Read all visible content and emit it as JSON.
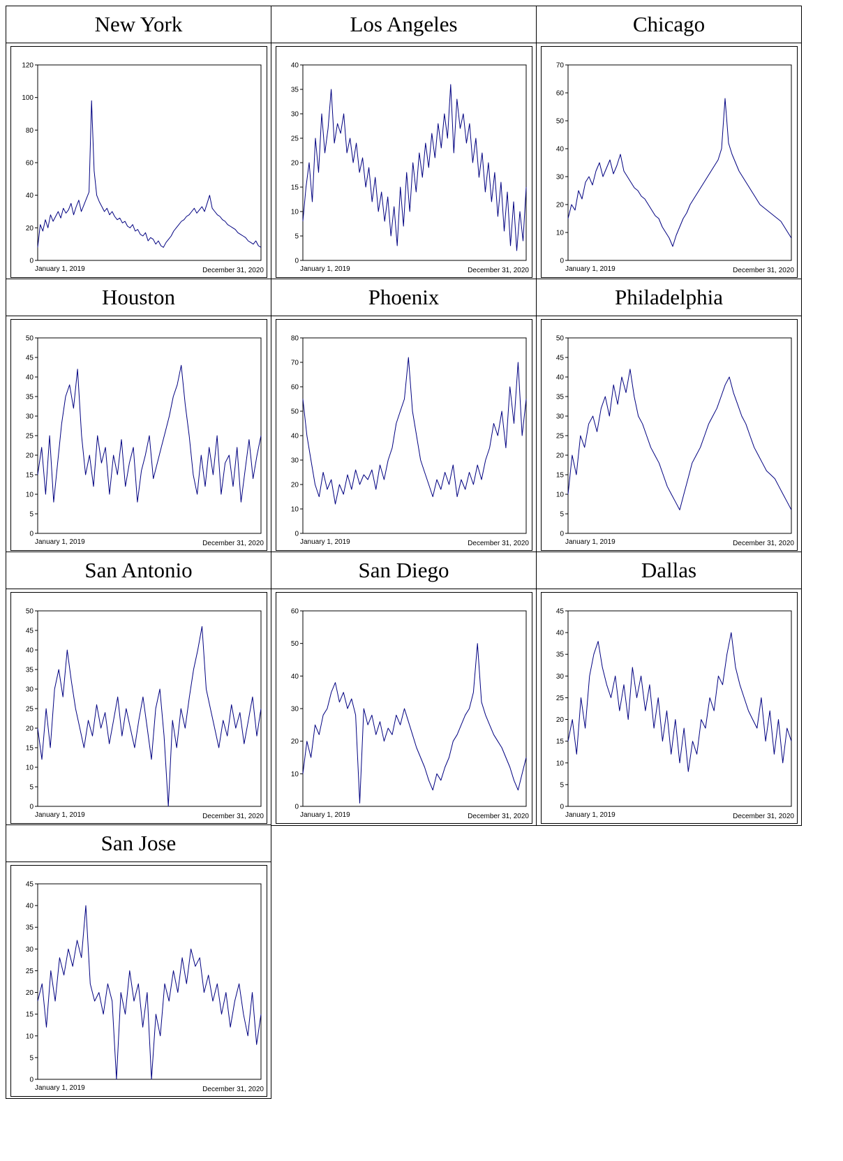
{
  "chart_data": [
    {
      "title": "New York",
      "type": "line",
      "ylim": [
        0,
        120
      ],
      "yticks": [
        0,
        20,
        40,
        60,
        80,
        100,
        120
      ],
      "x_start_label": "January 1, 2019",
      "x_end_label": "December 31, 2020",
      "color": "#000080",
      "values": [
        8,
        22,
        18,
        25,
        20,
        28,
        24,
        27,
        30,
        26,
        32,
        29,
        31,
        35,
        28,
        33,
        37,
        30,
        34,
        38,
        42,
        98,
        55,
        40,
        36,
        33,
        30,
        32,
        28,
        30,
        27,
        25,
        26,
        23,
        24,
        21,
        20,
        22,
        18,
        19,
        16,
        15,
        17,
        12,
        14,
        13,
        10,
        12,
        9,
        8,
        11,
        13,
        15,
        18,
        20,
        22,
        24,
        25,
        27,
        28,
        30,
        32,
        29,
        31,
        33,
        30,
        35,
        40,
        32,
        30,
        28,
        27,
        25,
        24,
        22,
        21,
        20,
        19,
        17,
        16,
        15,
        14,
        12,
        11,
        10,
        12,
        9,
        8
      ]
    },
    {
      "title": "Los Angeles",
      "type": "line",
      "ylim": [
        0,
        40
      ],
      "yticks": [
        0,
        5,
        10,
        15,
        20,
        25,
        30,
        35,
        40
      ],
      "x_start_label": "January 1, 2019",
      "x_end_label": "December 31, 2020",
      "color": "#000080",
      "values": [
        8,
        15,
        20,
        12,
        25,
        18,
        30,
        22,
        27,
        35,
        24,
        28,
        26,
        30,
        22,
        25,
        20,
        24,
        18,
        21,
        15,
        19,
        12,
        17,
        10,
        14,
        8,
        13,
        5,
        11,
        3,
        15,
        7,
        18,
        10,
        20,
        14,
        22,
        17,
        24,
        19,
        26,
        21,
        28,
        23,
        30,
        25,
        36,
        22,
        33,
        27,
        30,
        24,
        28,
        20,
        25,
        17,
        22,
        14,
        20,
        12,
        18,
        9,
        16,
        6,
        14,
        3,
        12,
        2,
        10,
        4,
        15
      ]
    },
    {
      "title": "Chicago",
      "type": "line",
      "ylim": [
        0,
        70
      ],
      "yticks": [
        0,
        10,
        20,
        30,
        40,
        50,
        60,
        70
      ],
      "x_start_label": "January 1, 2019",
      "x_end_label": "December 31, 2020",
      "color": "#000080",
      "values": [
        15,
        20,
        18,
        25,
        22,
        28,
        30,
        27,
        32,
        35,
        30,
        33,
        36,
        31,
        34,
        38,
        32,
        30,
        28,
        26,
        25,
        23,
        22,
        20,
        18,
        16,
        15,
        12,
        10,
        8,
        5,
        9,
        12,
        15,
        17,
        20,
        22,
        24,
        26,
        28,
        30,
        32,
        34,
        36,
        40,
        58,
        42,
        38,
        35,
        32,
        30,
        28,
        26,
        24,
        22,
        20,
        19,
        18,
        17,
        16,
        15,
        14,
        12,
        10,
        8
      ]
    },
    {
      "title": "Houston",
      "type": "line",
      "ylim": [
        0,
        50
      ],
      "yticks": [
        0,
        5,
        10,
        15,
        20,
        25,
        30,
        35,
        40,
        45,
        50
      ],
      "x_start_label": "January 1, 2019",
      "x_end_label": "December 31, 2020",
      "color": "#000080",
      "values": [
        15,
        22,
        10,
        25,
        8,
        18,
        28,
        35,
        38,
        32,
        42,
        25,
        15,
        20,
        12,
        25,
        18,
        22,
        10,
        20,
        15,
        24,
        12,
        18,
        22,
        8,
        16,
        20,
        25,
        14,
        18,
        22,
        26,
        30,
        35,
        38,
        43,
        33,
        25,
        15,
        10,
        20,
        12,
        22,
        15,
        25,
        10,
        18,
        20,
        12,
        22,
        8,
        16,
        24,
        14,
        20,
        25
      ]
    },
    {
      "title": "Phoenix",
      "type": "line",
      "ylim": [
        0,
        80
      ],
      "yticks": [
        0,
        10,
        20,
        30,
        40,
        50,
        60,
        70,
        80
      ],
      "x_start_label": "January 1, 2019",
      "x_end_label": "December 31, 2020",
      "color": "#000080",
      "values": [
        55,
        40,
        30,
        20,
        15,
        25,
        18,
        22,
        12,
        20,
        16,
        24,
        18,
        26,
        20,
        24,
        22,
        26,
        18,
        28,
        22,
        30,
        35,
        45,
        50,
        55,
        72,
        50,
        40,
        30,
        25,
        20,
        15,
        22,
        18,
        25,
        20,
        28,
        15,
        22,
        18,
        25,
        20,
        28,
        22,
        30,
        35,
        45,
        40,
        50,
        35,
        60,
        45,
        70,
        40,
        55
      ]
    },
    {
      "title": "Philadelphia",
      "type": "line",
      "ylim": [
        0,
        50
      ],
      "yticks": [
        0,
        5,
        10,
        15,
        20,
        25,
        30,
        35,
        40,
        45,
        50
      ],
      "x_start_label": "January 1, 2019",
      "x_end_label": "December 31, 2020",
      "color": "#000080",
      "values": [
        10,
        20,
        15,
        25,
        22,
        28,
        30,
        26,
        32,
        35,
        30,
        38,
        33,
        40,
        36,
        42,
        35,
        30,
        28,
        25,
        22,
        20,
        18,
        15,
        12,
        10,
        8,
        6,
        10,
        14,
        18,
        20,
        22,
        25,
        28,
        30,
        32,
        35,
        38,
        40,
        36,
        33,
        30,
        28,
        25,
        22,
        20,
        18,
        16,
        15,
        14,
        12,
        10,
        8,
        6
      ]
    },
    {
      "title": "San Antonio",
      "type": "line",
      "ylim": [
        0,
        50
      ],
      "yticks": [
        0,
        5,
        10,
        15,
        20,
        25,
        30,
        35,
        40,
        45,
        50
      ],
      "x_start_label": "January 1, 2019",
      "x_end_label": "December 31, 2020",
      "color": "#000080",
      "values": [
        20,
        12,
        25,
        15,
        30,
        35,
        28,
        40,
        32,
        25,
        20,
        15,
        22,
        18,
        26,
        20,
        24,
        16,
        22,
        28,
        18,
        25,
        20,
        15,
        22,
        28,
        20,
        12,
        25,
        30,
        18,
        0,
        22,
        15,
        25,
        20,
        28,
        35,
        40,
        46,
        30,
        25,
        20,
        15,
        22,
        18,
        26,
        20,
        24,
        16,
        22,
        28,
        18,
        25
      ]
    },
    {
      "title": "San Diego",
      "type": "line",
      "ylim": [
        0,
        60
      ],
      "yticks": [
        0,
        10,
        20,
        30,
        40,
        50,
        60
      ],
      "x_start_label": "January 1, 2019",
      "x_end_label": "December 31, 2020",
      "color": "#000080",
      "values": [
        10,
        20,
        15,
        25,
        22,
        28,
        30,
        35,
        38,
        32,
        35,
        30,
        33,
        28,
        1,
        30,
        25,
        28,
        22,
        26,
        20,
        24,
        22,
        28,
        25,
        30,
        26,
        22,
        18,
        15,
        12,
        8,
        5,
        10,
        8,
        12,
        15,
        20,
        22,
        25,
        28,
        30,
        35,
        50,
        32,
        28,
        25,
        22,
        20,
        18,
        15,
        12,
        8,
        5,
        10,
        15
      ]
    },
    {
      "title": "Dallas",
      "type": "line",
      "ylim": [
        0,
        45
      ],
      "yticks": [
        0,
        5,
        10,
        15,
        20,
        25,
        30,
        35,
        40,
        45
      ],
      "x_start_label": "January 1,  2019",
      "x_end_label": "December 31, 2020",
      "color": "#000080",
      "values": [
        15,
        20,
        12,
        25,
        18,
        30,
        35,
        38,
        32,
        28,
        25,
        30,
        22,
        28,
        20,
        32,
        25,
        30,
        22,
        28,
        18,
        25,
        15,
        22,
        12,
        20,
        10,
        18,
        8,
        15,
        12,
        20,
        18,
        25,
        22,
        30,
        28,
        35,
        40,
        32,
        28,
        25,
        22,
        20,
        18,
        25,
        15,
        22,
        12,
        20,
        10,
        18,
        15
      ]
    },
    {
      "title": "San Jose",
      "type": "line",
      "ylim": [
        0,
        45
      ],
      "yticks": [
        0,
        5,
        10,
        15,
        20,
        25,
        30,
        35,
        40,
        45
      ],
      "x_start_label": "January 1, 2019",
      "x_end_label": "December 31, 2020",
      "color": "#000080",
      "values": [
        18,
        22,
        12,
        25,
        18,
        28,
        24,
        30,
        26,
        32,
        28,
        40,
        22,
        18,
        20,
        15,
        22,
        18,
        0,
        20,
        15,
        25,
        18,
        22,
        12,
        20,
        0,
        15,
        10,
        22,
        18,
        25,
        20,
        28,
        22,
        30,
        26,
        28,
        20,
        24,
        18,
        22,
        15,
        20,
        12,
        18,
        22,
        15,
        10,
        20,
        8,
        15
      ]
    }
  ]
}
